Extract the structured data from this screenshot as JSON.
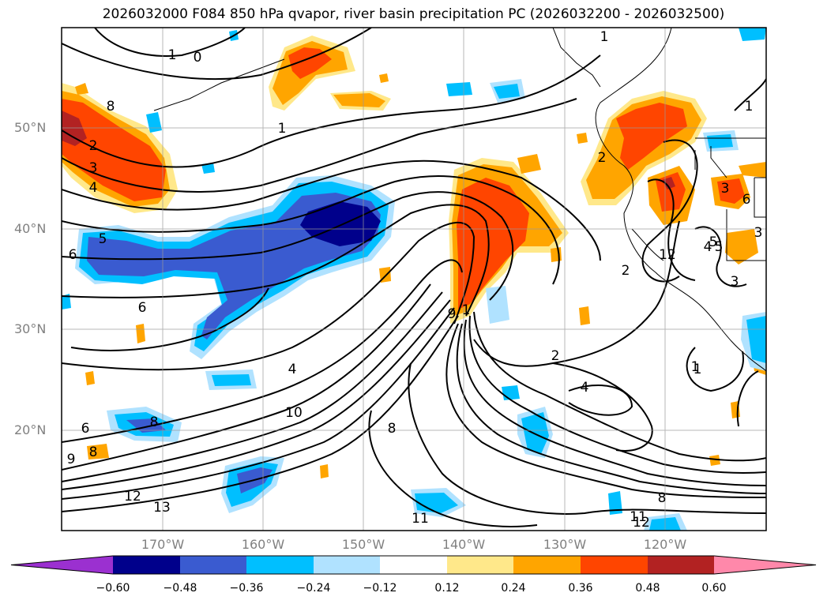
{
  "title": "2026032000 F084 850 hPa qvapor, river basin precipitation PC (2026032200 - 2026032500)",
  "lat_labels": [
    "50°N",
    "40°N",
    "30°N",
    "20°N"
  ],
  "lon_labels": [
    "170°W",
    "160°W",
    "150°W",
    "140°W",
    "130°W",
    "120°W"
  ],
  "colorbar": {
    "colors": [
      "#9b30d0",
      "#00008b",
      "#3a5bd0",
      "#00bfff",
      "#b0e2ff",
      "#ffffff",
      "#ffe88a",
      "#ffa500",
      "#ff4500",
      "#b22222",
      "#ff88aa"
    ],
    "ticks": [
      "−0.60",
      "−0.48",
      "−0.36",
      "−0.24",
      "−0.12",
      "0.12",
      "0.24",
      "0.36",
      "0.48",
      "0.60"
    ]
  },
  "contour_labels": [
    "1",
    "0",
    "1",
    "1",
    "1",
    "1",
    "2",
    "3",
    "4",
    "5",
    "6",
    "6",
    "6",
    "4",
    "8",
    "8",
    "8",
    "8",
    "9",
    "10",
    "11",
    "12",
    "12",
    "13",
    "2",
    "2",
    "2",
    "3",
    "3",
    "4",
    "5",
    "4",
    "1",
    "8",
    "9",
    "12",
    "11",
    "5",
    "6",
    "1",
    "3"
  ]
}
